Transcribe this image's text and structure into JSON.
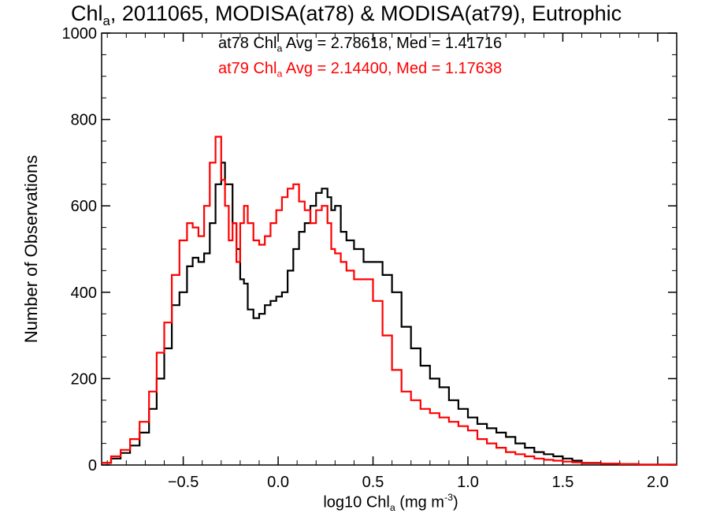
{
  "title": {
    "pre": "Chl",
    "sub": "a",
    "post": ", 2011065, MODISA(at78) & MODISA(at79), Eutrophic"
  },
  "stats": [
    {
      "pre": "at78 Chl",
      "sub": "a",
      "post": " Avg = 2.78618, Med = 1.41716",
      "color": "#000000"
    },
    {
      "pre": "at79 Chl",
      "sub": "a",
      "post": " Avg = 2.14400, Med = 1.17638",
      "color": "#ff0000"
    }
  ],
  "xlabel": {
    "pre": "log10 Chl",
    "sub": "a",
    "mid": " (mg m",
    "sup": "-3",
    "post": ")"
  },
  "ylabel": "Number of Observations",
  "chart_data": {
    "type": "histogram-step",
    "xlim": [
      -0.93,
      2.1
    ],
    "ylim": [
      0,
      1000
    ],
    "xticks": [
      -0.5,
      0.0,
      0.5,
      1.0,
      1.5,
      2.0
    ],
    "xtick_labels": [
      "−0.5",
      "0.0",
      "0.5",
      "1.0",
      "1.5",
      "2.0"
    ],
    "yticks": [
      0,
      200,
      400,
      600,
      800,
      1000
    ],
    "ytick_labels": [
      "0",
      "200",
      "400",
      "600",
      "800",
      "1000"
    ],
    "grid": false,
    "series": [
      {
        "name": "at78",
        "color": "#000000",
        "x": [
          -0.93,
          -0.88,
          -0.83,
          -0.78,
          -0.73,
          -0.68,
          -0.64,
          -0.6,
          -0.56,
          -0.52,
          -0.48,
          -0.45,
          -0.42,
          -0.39,
          -0.36,
          -0.33,
          -0.3,
          -0.28,
          -0.26,
          -0.24,
          -0.22,
          -0.2,
          -0.18,
          -0.16,
          -0.13,
          -0.1,
          -0.07,
          -0.04,
          -0.01,
          0.02,
          0.05,
          0.08,
          0.11,
          0.14,
          0.17,
          0.2,
          0.23,
          0.26,
          0.28,
          0.3,
          0.33,
          0.36,
          0.4,
          0.45,
          0.5,
          0.55,
          0.6,
          0.65,
          0.7,
          0.75,
          0.8,
          0.85,
          0.9,
          0.95,
          1.0,
          1.05,
          1.1,
          1.15,
          1.2,
          1.25,
          1.3,
          1.35,
          1.4,
          1.45,
          1.5,
          1.55,
          1.6,
          1.7,
          1.8,
          1.9,
          2.0,
          2.1
        ],
        "values": [
          5,
          15,
          28,
          45,
          75,
          130,
          200,
          270,
          370,
          400,
          460,
          480,
          470,
          490,
          560,
          650,
          700,
          650,
          650,
          560,
          500,
          430,
          420,
          360,
          340,
          350,
          370,
          380,
          390,
          400,
          450,
          500,
          540,
          560,
          600,
          630,
          640,
          620,
          590,
          600,
          540,
          520,
          500,
          470,
          470,
          440,
          400,
          320,
          270,
          230,
          200,
          180,
          150,
          130,
          110,
          95,
          85,
          75,
          65,
          50,
          40,
          30,
          25,
          20,
          15,
          10,
          5,
          3,
          2,
          1,
          1,
          1
        ]
      },
      {
        "name": "at79",
        "color": "#ff0000",
        "x": [
          -0.93,
          -0.88,
          -0.83,
          -0.78,
          -0.73,
          -0.68,
          -0.64,
          -0.6,
          -0.56,
          -0.52,
          -0.48,
          -0.45,
          -0.42,
          -0.39,
          -0.36,
          -0.33,
          -0.3,
          -0.28,
          -0.26,
          -0.24,
          -0.22,
          -0.2,
          -0.18,
          -0.16,
          -0.13,
          -0.1,
          -0.07,
          -0.04,
          -0.01,
          0.02,
          0.05,
          0.08,
          0.11,
          0.14,
          0.17,
          0.2,
          0.23,
          0.26,
          0.28,
          0.3,
          0.33,
          0.36,
          0.4,
          0.45,
          0.5,
          0.55,
          0.6,
          0.65,
          0.7,
          0.75,
          0.8,
          0.85,
          0.9,
          0.95,
          1.0,
          1.05,
          1.1,
          1.15,
          1.2,
          1.25,
          1.3,
          1.35,
          1.4,
          1.45,
          1.5,
          1.55,
          1.6,
          1.7,
          1.8,
          1.9,
          2.0,
          2.1
        ],
        "values": [
          5,
          20,
          35,
          60,
          100,
          170,
          260,
          330,
          440,
          520,
          560,
          550,
          530,
          600,
          700,
          760,
          660,
          600,
          520,
          560,
          470,
          560,
          600,
          560,
          520,
          510,
          530,
          560,
          590,
          620,
          640,
          650,
          610,
          590,
          560,
          590,
          600,
          560,
          500,
          490,
          470,
          450,
          430,
          430,
          380,
          300,
          220,
          170,
          150,
          130,
          120,
          110,
          100,
          90,
          80,
          60,
          50,
          40,
          30,
          25,
          20,
          15,
          12,
          10,
          8,
          6,
          4,
          3,
          2,
          1,
          1,
          1
        ]
      }
    ]
  }
}
